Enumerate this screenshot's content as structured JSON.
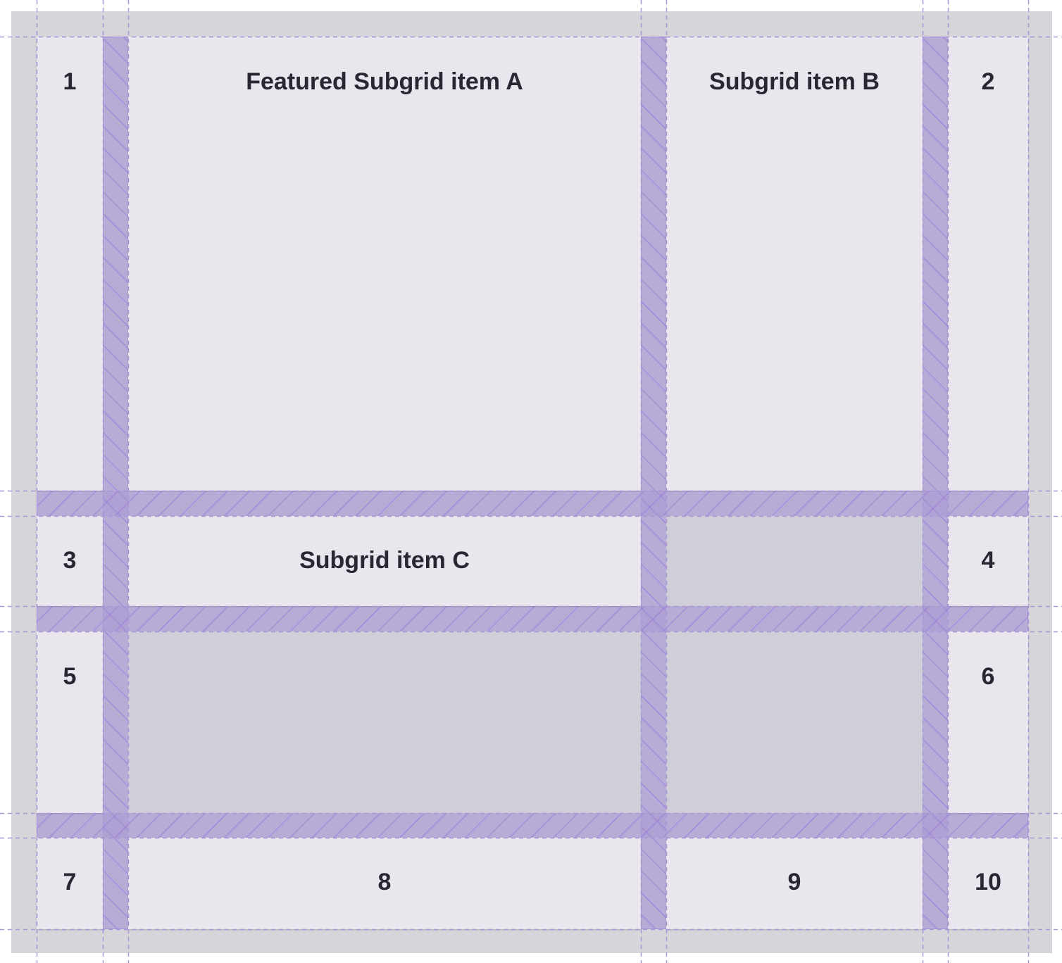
{
  "cells": {
    "n1": "1",
    "a": "Featured Subgrid item A",
    "b": "Subgrid item B",
    "n2": "2",
    "n3": "3",
    "c": "Subgrid item C",
    "n4": "4",
    "n5": "5",
    "n6": "6",
    "n7": "7",
    "n8": "8",
    "n9": "9",
    "n10": "10"
  },
  "colors": {
    "cell": "#e9e6ee",
    "empty_cell": "#d0cfd9",
    "gap": "#c3bed8",
    "grid_line": "#a995d6",
    "background": "#d6d6da"
  }
}
